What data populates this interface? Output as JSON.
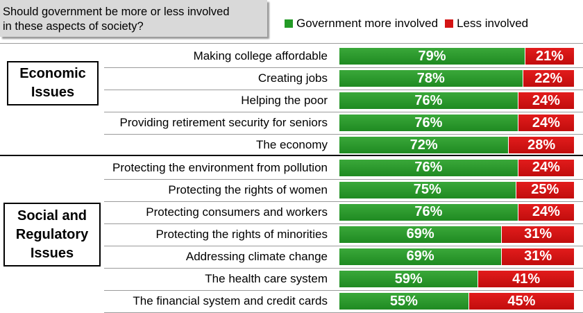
{
  "question": [
    "Should government be more or less involved",
    "in these aspects of society?"
  ],
  "legend": {
    "more_label": "Government more involved",
    "less_label": "Less involved"
  },
  "colors": {
    "more": "#239a26",
    "less": "#d41414"
  },
  "groups": [
    {
      "lines": [
        "Economic",
        "Issues"
      ]
    },
    {
      "lines": [
        "Social and",
        "Regulatory",
        "Issues"
      ]
    }
  ],
  "chart_data": {
    "type": "bar",
    "orientation": "horizontal",
    "stacked": true,
    "categories": [
      "Making college affordable",
      "Creating jobs",
      "Helping the poor",
      "Providing retirement security for seniors",
      "The economy",
      "Protecting the environment from pollution",
      "Protecting the rights of women",
      "Protecting consumers and workers",
      "Protecting the rights of minorities",
      "Addressing climate change",
      "The health care system",
      "The financial system and credit cards"
    ],
    "series": [
      {
        "name": "Government more involved",
        "values": [
          79,
          78,
          76,
          76,
          72,
          76,
          75,
          76,
          69,
          69,
          59,
          55
        ]
      },
      {
        "name": "Less involved",
        "values": [
          21,
          22,
          24,
          24,
          28,
          24,
          25,
          24,
          31,
          31,
          41,
          45
        ]
      }
    ],
    "data_labels": {
      "more": [
        "79%",
        "78%",
        "76%",
        "76%",
        "72%",
        "76%",
        "75%",
        "76%",
        "69%",
        "69%",
        "59%",
        "55%"
      ],
      "less": [
        "21%",
        "22%",
        "24%",
        "24%",
        "28%",
        "24%",
        "25%",
        "24%",
        "31%",
        "31%",
        "41%",
        "45%"
      ]
    },
    "xlim": [
      0,
      100
    ],
    "legend_position": "top-right"
  }
}
